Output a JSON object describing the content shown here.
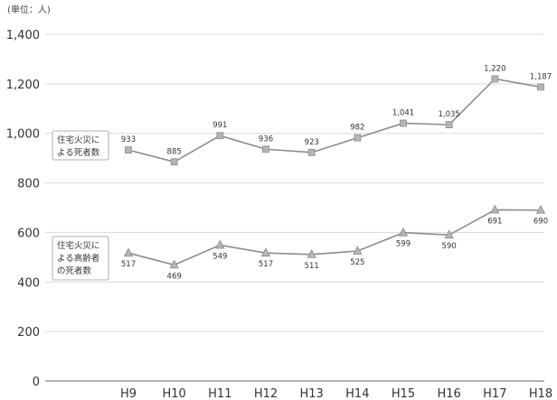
{
  "chart_data": {
    "type": "line",
    "unit_label": "(単位：人)",
    "categories": [
      "H9",
      "H10",
      "H11",
      "H12",
      "H13",
      "H14",
      "H15",
      "H16",
      "H17",
      "H18"
    ],
    "ylim": [
      0,
      1400
    ],
    "yticks": [
      "0",
      "200",
      "400",
      "600",
      "800",
      "1,000",
      "1,200",
      "1,400"
    ],
    "ytick_values": [
      0,
      200,
      400,
      600,
      800,
      1000,
      1200,
      1400
    ],
    "grid": true,
    "series": [
      {
        "name_lines": [
          "住宅火災に",
          "よる死者数"
        ],
        "marker": "square",
        "values": [
          933,
          885,
          991,
          936,
          923,
          982,
          1041,
          1035,
          1220,
          1187
        ],
        "labels": [
          "933",
          "885",
          "991",
          "936",
          "923",
          "982",
          "1,041",
          "1,035",
          "1,220",
          "1,187"
        ]
      },
      {
        "name_lines": [
          "住宅火災に",
          "よる高齢者",
          "の死者数"
        ],
        "marker": "triangle",
        "values": [
          517,
          469,
          549,
          517,
          511,
          525,
          599,
          590,
          691,
          690
        ],
        "labels": [
          "517",
          "469",
          "549",
          "517",
          "511",
          "525",
          "599",
          "590",
          "691",
          "690"
        ]
      }
    ]
  },
  "colors": {
    "line": "#8c8c8c",
    "marker_fill": "#b5b5b5",
    "grid": "#d9d9d9"
  }
}
